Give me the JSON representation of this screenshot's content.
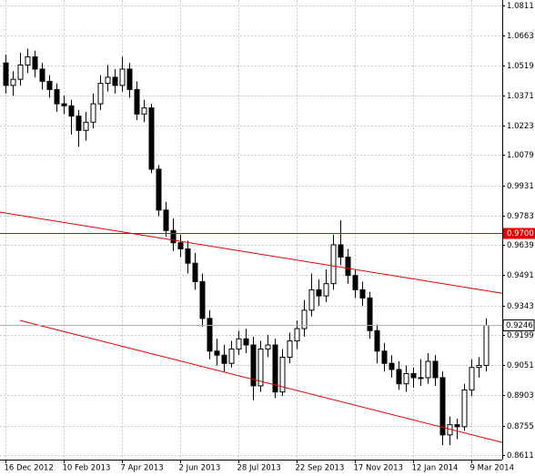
{
  "chart_data": {
    "type": "candlestick",
    "categories": [
      "16 Dec 2012",
      null,
      null,
      null,
      null,
      null,
      null,
      null,
      "10 Feb 2013",
      null,
      null,
      null,
      null,
      null,
      null,
      null,
      "7 Apr 2013",
      null,
      null,
      null,
      null,
      null,
      null,
      null,
      "2 Jun 2013",
      null,
      null,
      null,
      null,
      null,
      null,
      null,
      "28 Jul 2013",
      null,
      null,
      null,
      null,
      null,
      null,
      null,
      "22 Sep 2013",
      null,
      null,
      null,
      null,
      null,
      null,
      null,
      "17 Nov 2013",
      null,
      null,
      null,
      null,
      null,
      null,
      null,
      "12 Jan 2014",
      null,
      null,
      null,
      null,
      null,
      null,
      null,
      "9 Mar 2014",
      null,
      null
    ],
    "ohlc": [
      [
        1.053,
        1.057,
        1.038,
        1.042
      ],
      [
        1.042,
        1.049,
        1.037,
        1.045
      ],
      [
        1.045,
        1.058,
        1.042,
        1.052
      ],
      [
        1.052,
        1.06,
        1.048,
        1.056
      ],
      [
        1.056,
        1.059,
        1.046,
        1.05
      ],
      [
        1.05,
        1.053,
        1.04,
        1.044
      ],
      [
        1.044,
        1.047,
        1.036,
        1.04
      ],
      [
        1.04,
        1.043,
        1.029,
        1.033
      ],
      [
        1.033,
        1.037,
        1.028,
        1.032
      ],
      [
        1.032,
        1.035,
        1.018,
        1.027
      ],
      [
        1.027,
        1.03,
        1.012,
        1.02
      ],
      [
        1.02,
        1.029,
        1.015,
        1.024
      ],
      [
        1.024,
        1.038,
        1.021,
        1.033
      ],
      [
        1.033,
        1.047,
        1.03,
        1.043
      ],
      [
        1.043,
        1.052,
        1.039,
        1.046
      ],
      [
        1.046,
        1.05,
        1.038,
        1.042
      ],
      [
        1.042,
        1.056,
        1.039,
        1.05
      ],
      [
        1.05,
        1.053,
        1.036,
        1.04
      ],
      [
        1.04,
        1.044,
        1.025,
        1.028
      ],
      [
        1.028,
        1.035,
        1.024,
        1.031
      ],
      [
        1.031,
        1.033,
        0.999,
        1.001
      ],
      [
        1.001,
        1.003,
        0.978,
        0.981
      ],
      [
        0.981,
        0.985,
        0.968,
        0.971
      ],
      [
        0.971,
        0.977,
        0.961,
        0.965
      ],
      [
        0.965,
        0.969,
        0.958,
        0.962
      ],
      [
        0.962,
        0.966,
        0.95,
        0.955
      ],
      [
        0.955,
        0.96,
        0.942,
        0.946
      ],
      [
        0.946,
        0.95,
        0.924,
        0.928
      ],
      [
        0.928,
        0.932,
        0.908,
        0.912
      ],
      [
        0.912,
        0.918,
        0.905,
        0.91
      ],
      [
        0.91,
        0.915,
        0.902,
        0.906
      ],
      [
        0.906,
        0.917,
        0.904,
        0.913
      ],
      [
        0.913,
        0.922,
        0.91,
        0.918
      ],
      [
        0.918,
        0.923,
        0.911,
        0.915
      ],
      [
        0.915,
        0.919,
        0.888,
        0.895
      ],
      [
        0.895,
        0.917,
        0.892,
        0.913
      ],
      [
        0.913,
        0.92,
        0.909,
        0.915
      ],
      [
        0.915,
        0.918,
        0.889,
        0.892
      ],
      [
        0.892,
        0.913,
        0.89,
        0.909
      ],
      [
        0.909,
        0.921,
        0.906,
        0.917
      ],
      [
        0.917,
        0.927,
        0.913,
        0.923
      ],
      [
        0.923,
        0.937,
        0.919,
        0.932
      ],
      [
        0.932,
        0.95,
        0.929,
        0.942
      ],
      [
        0.942,
        0.947,
        0.934,
        0.939
      ],
      [
        0.939,
        0.952,
        0.936,
        0.945
      ],
      [
        0.945,
        0.969,
        0.942,
        0.964
      ],
      [
        0.964,
        0.976,
        0.954,
        0.958
      ],
      [
        0.958,
        0.962,
        0.945,
        0.949
      ],
      [
        0.949,
        0.952,
        0.938,
        0.942
      ],
      [
        0.942,
        0.946,
        0.934,
        0.938
      ],
      [
        0.938,
        0.941,
        0.918,
        0.922
      ],
      [
        0.922,
        0.925,
        0.906,
        0.912
      ],
      [
        0.912,
        0.916,
        0.902,
        0.906
      ],
      [
        0.906,
        0.91,
        0.899,
        0.903
      ],
      [
        0.903,
        0.907,
        0.893,
        0.896
      ],
      [
        0.896,
        0.905,
        0.892,
        0.901
      ],
      [
        0.901,
        0.904,
        0.894,
        0.899
      ],
      [
        0.899,
        0.908,
        0.895,
        0.899
      ],
      [
        0.899,
        0.911,
        0.896,
        0.907
      ],
      [
        0.907,
        0.91,
        0.895,
        0.899
      ],
      [
        0.899,
        0.902,
        0.866,
        0.871
      ],
      [
        0.871,
        0.88,
        0.866,
        0.876
      ],
      [
        0.876,
        0.879,
        0.869,
        0.875
      ],
      [
        0.875,
        0.896,
        0.873,
        0.893
      ],
      [
        0.893,
        0.908,
        0.89,
        0.904
      ],
      [
        0.904,
        0.909,
        0.899,
        0.905
      ],
      [
        0.905,
        0.928,
        0.902,
        0.9246
      ]
    ],
    "up_color": "#ffffff",
    "down_color": "#000000",
    "xlim": [
      -0.75,
      68.25
    ],
    "ylim": [
      0.8589,
      1.0838
    ],
    "yticks": [
      1.0811,
      1.0663,
      1.0519,
      1.0371,
      1.0223,
      1.0079,
      0.9931,
      0.9783,
      0.9639,
      0.9491,
      0.9343,
      0.9199,
      0.9051,
      0.8903,
      0.8755,
      0.8611
    ],
    "grid": true,
    "level": {
      "value": 0.97,
      "label": "0.9700",
      "color": "#e00000"
    },
    "current_price": 0.9246,
    "trendlines": [
      {
        "from": [
          -0.75,
          0.98
        ],
        "to": [
          68.25,
          0.9403
        ],
        "color": "#e00000"
      },
      {
        "from": [
          2,
          0.927
        ],
        "to": [
          68.25,
          0.8673
        ],
        "color": "#e00000"
      }
    ]
  }
}
